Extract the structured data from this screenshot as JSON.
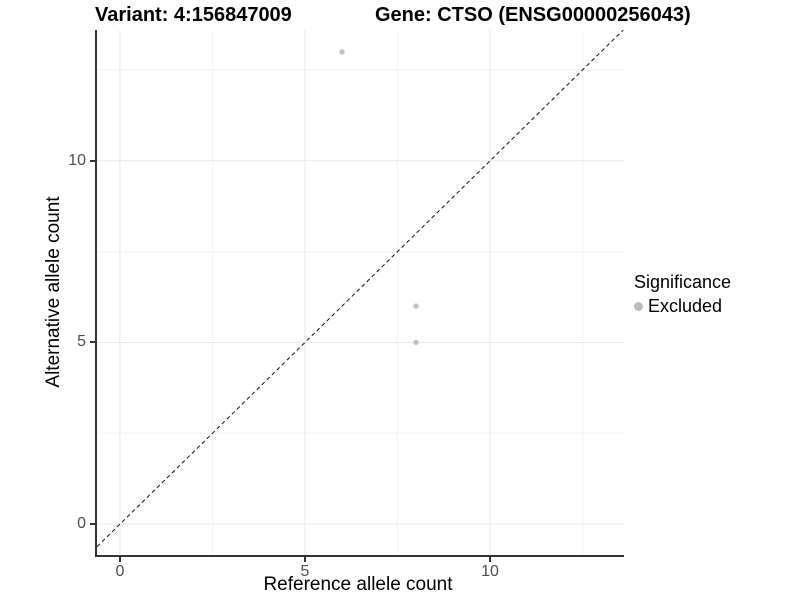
{
  "figure": {
    "title_left": "Variant: 4:156847009",
    "title_right": "Gene: CTSO (ENSG00000256043)"
  },
  "chart_data": {
    "type": "scatter",
    "xlabel": "Reference allele count",
    "ylabel": "Alternative allele count",
    "xlim": [
      -0.62,
      13.62
    ],
    "ylim": [
      -0.85,
      13.6
    ],
    "x_ticks": [
      0,
      5,
      10
    ],
    "y_ticks": [
      0,
      5,
      10
    ],
    "x_minor_gridlines": [
      2.5,
      7.5,
      12.5
    ],
    "y_minor_gridlines": [
      2.5,
      7.5,
      12.5
    ],
    "grid": true,
    "series": [
      {
        "name": "Excluded",
        "color": "#c3c3c3",
        "marker_radius": 2.7,
        "points": [
          [
            6,
            13
          ],
          [
            8,
            6
          ],
          [
            8,
            5
          ]
        ]
      }
    ],
    "reference_line": {
      "type": "identity",
      "equation": "y = x",
      "style": "dashed",
      "color": "#111111"
    },
    "legend": {
      "title": "Significance",
      "position": "right",
      "items": [
        {
          "label": "Excluded",
          "color": "#bdbdbd"
        }
      ]
    }
  },
  "colors": {
    "grid_major": "#e8e8e8",
    "grid_minor": "#f4f4f4",
    "axis_line": "#333333",
    "tick_label": "#4d4d4d"
  }
}
